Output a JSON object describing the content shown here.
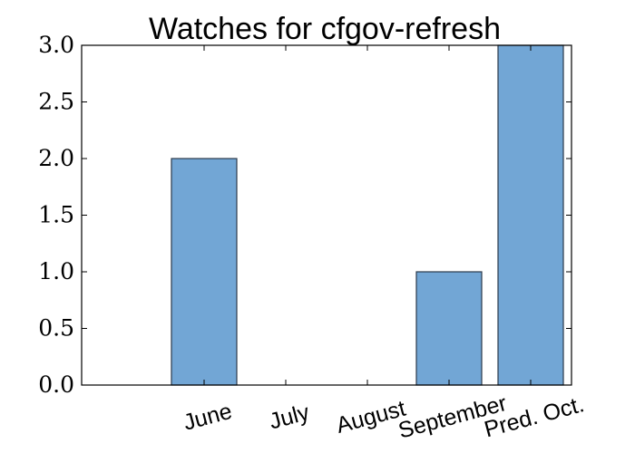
{
  "chart_data": {
    "type": "bar",
    "title": "Watches for cfgov-refresh",
    "xlabel": "",
    "ylabel": "",
    "categories": [
      "June",
      "July",
      "August",
      "September",
      "Pred. Oct."
    ],
    "values": [
      2,
      0,
      0,
      1,
      3
    ],
    "ylim": [
      0,
      3.0
    ],
    "yticks": [
      "0.0",
      "0.5",
      "1.0",
      "1.5",
      "2.0",
      "2.5",
      "3.0"
    ],
    "bar_color": "#72a6d5",
    "edge_color": "#2b3a4a",
    "grid": false,
    "legend": "none"
  }
}
